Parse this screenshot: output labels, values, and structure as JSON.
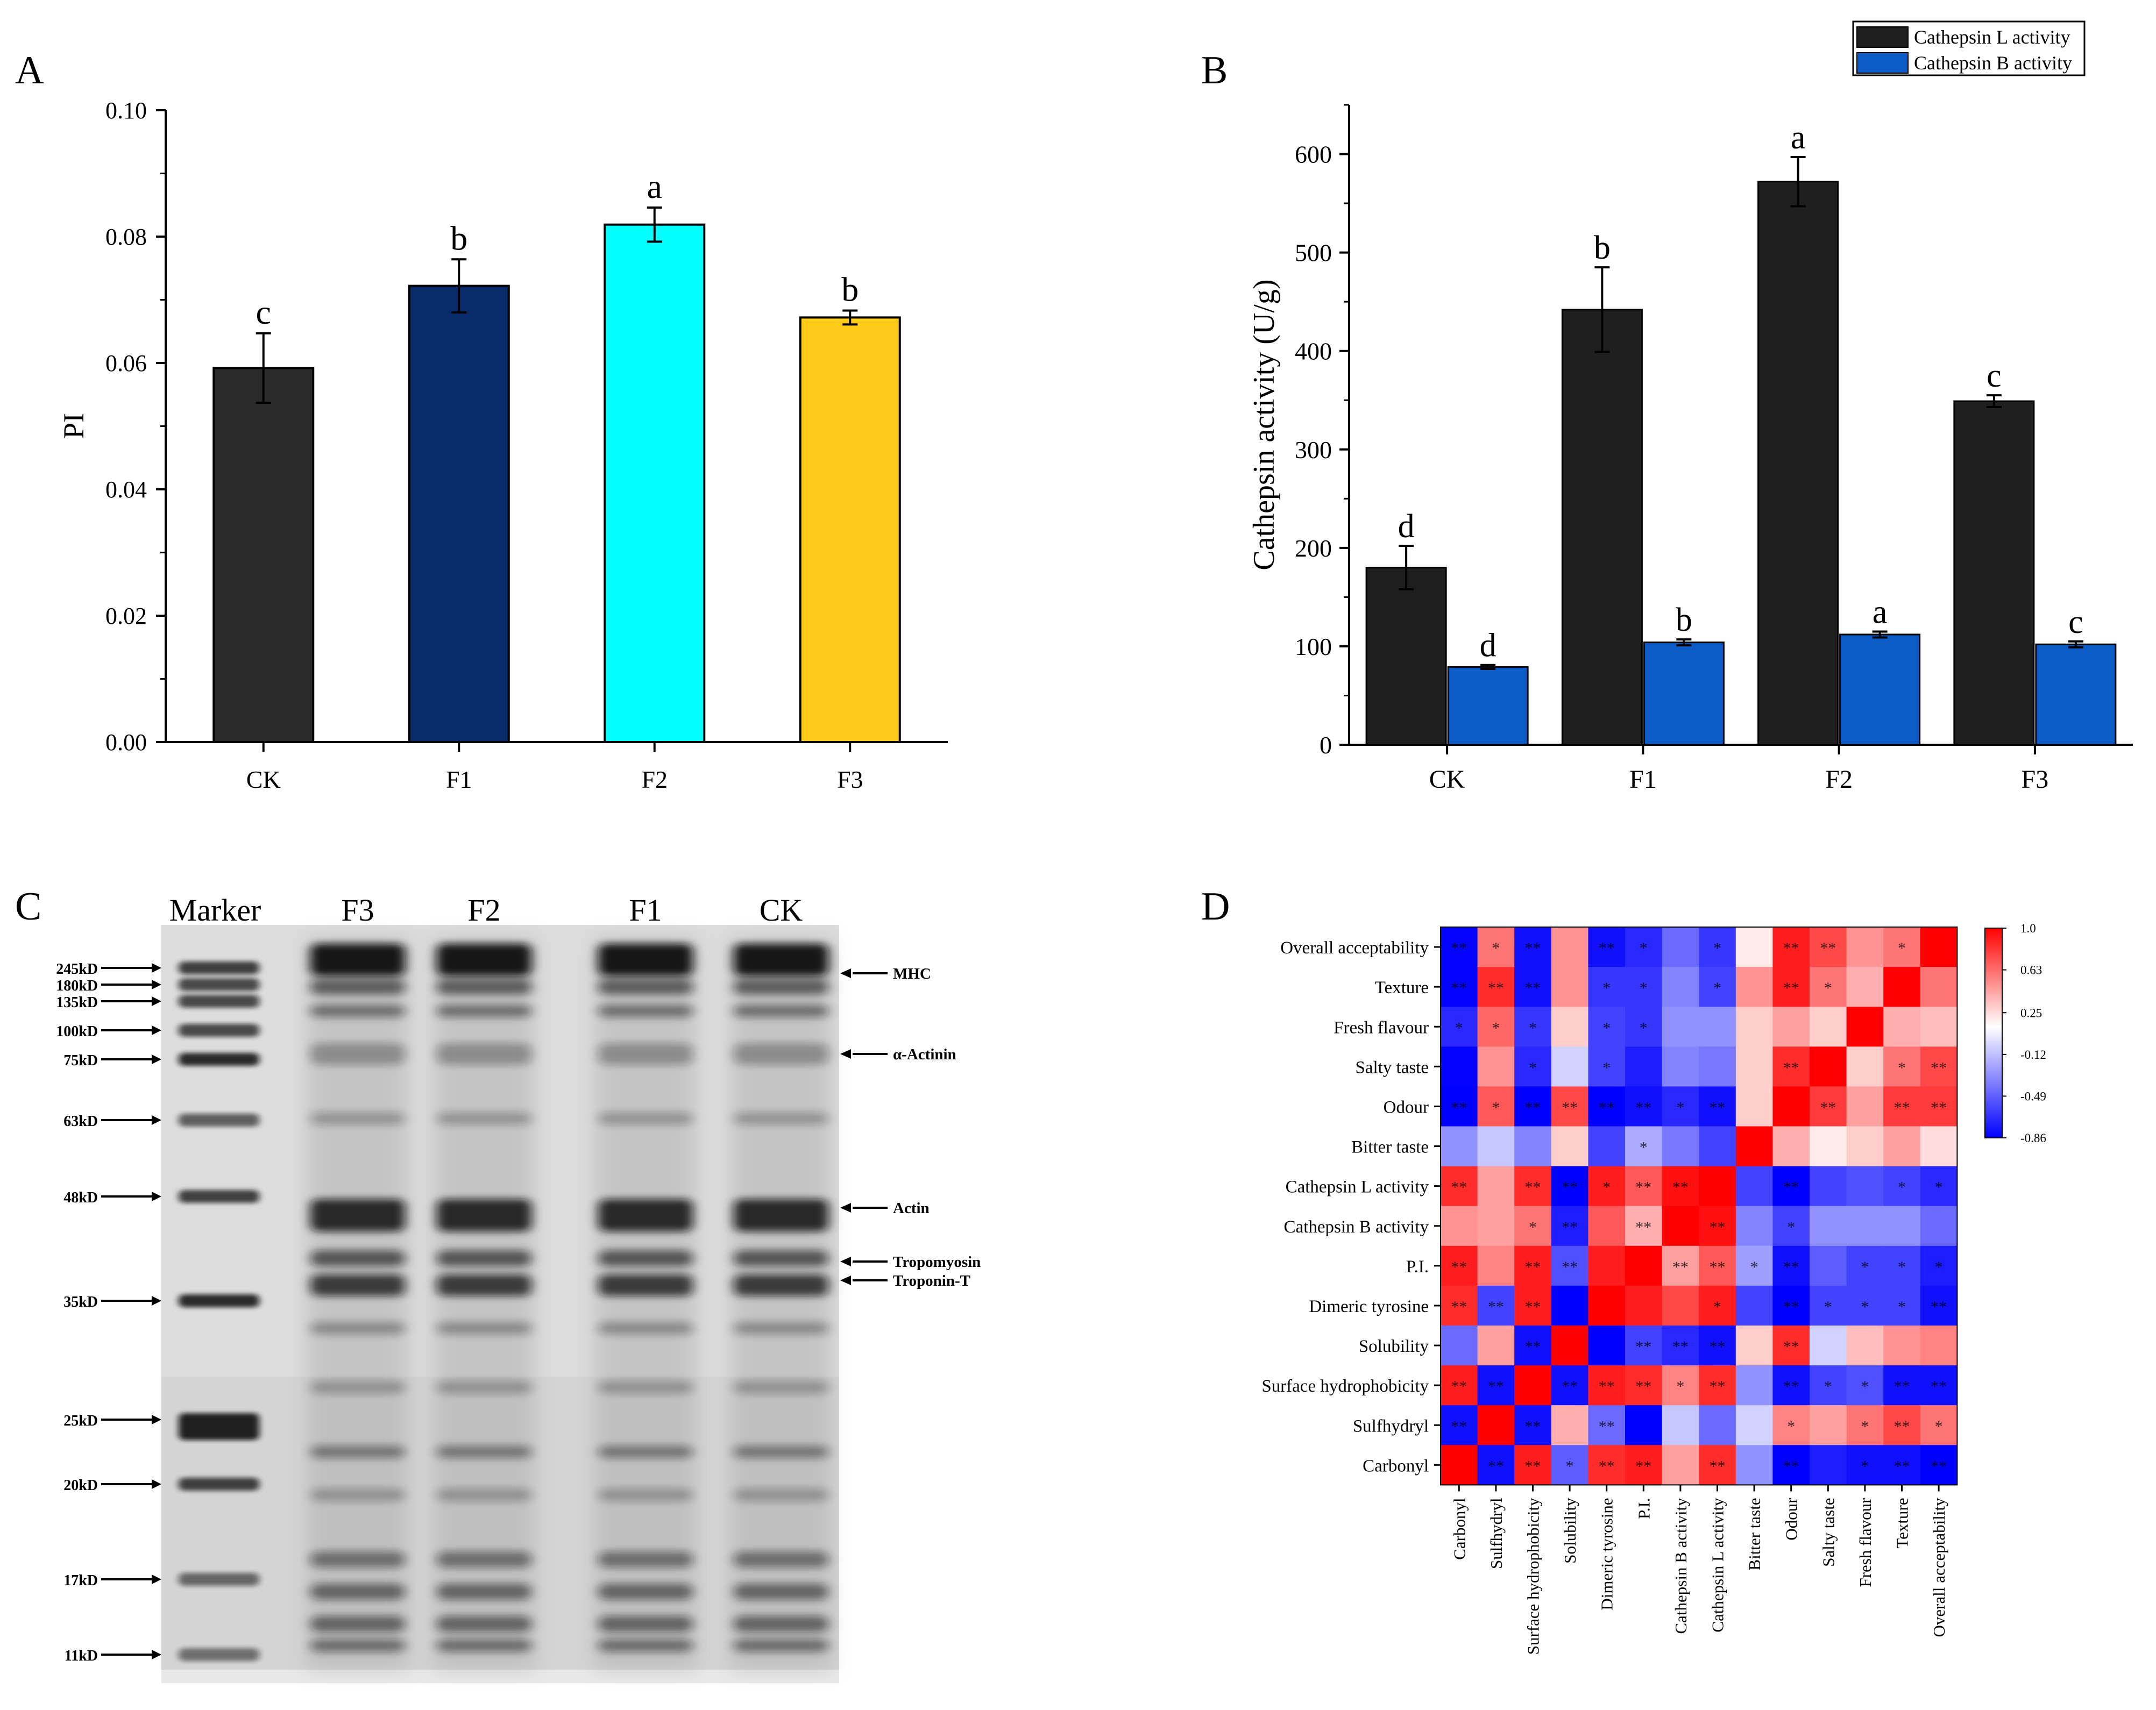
{
  "panels": {
    "A": "A",
    "B": "B",
    "C": "C",
    "D": "D"
  },
  "chart_data": [
    {
      "type": "bar",
      "id": "panel-A",
      "ylabel": "PI",
      "xlabel": "",
      "categories": [
        "CK",
        "F1",
        "F2",
        "F3"
      ],
      "values": [
        0.0592,
        0.0722,
        0.0819,
        0.0672
      ],
      "errors": [
        0.0055,
        0.0042,
        0.0027,
        0.0011
      ],
      "letters": [
        "c",
        "b",
        "a",
        "b"
      ],
      "colors": [
        "#2a2a2a",
        "#072b6a",
        "#00ffff",
        "#ffcc1a"
      ],
      "ylim": [
        0,
        0.1
      ],
      "yticks": [
        "0.00",
        "0.02",
        "0.04",
        "0.06",
        "0.08",
        "0.10"
      ],
      "ytick_values": [
        0,
        0.02,
        0.04,
        0.06,
        0.08,
        0.1
      ]
    },
    {
      "type": "bar",
      "id": "panel-B",
      "ylabel": "Cathepsin  activity (U/g)",
      "xlabel": "",
      "categories": [
        "CK",
        "F1",
        "F2",
        "F3"
      ],
      "series": [
        {
          "name": "Cathepsin L activity",
          "color": "#1f1f1f",
          "values": [
            180,
            442,
            572,
            349
          ],
          "errors": [
            22,
            43,
            25,
            6
          ],
          "letters": [
            "d",
            "b",
            "a",
            "c"
          ]
        },
        {
          "name": "Cathepsin B activity",
          "color": "#0b5cc7",
          "values": [
            79,
            104,
            112,
            102
          ],
          "errors": [
            2,
            3,
            3,
            3
          ],
          "letters": [
            "d",
            "b",
            "a",
            "c"
          ]
        }
      ],
      "ylim": [
        0,
        650
      ],
      "yticks": [
        "0",
        "100",
        "200",
        "300",
        "400",
        "500",
        "600"
      ],
      "ytick_values": [
        0,
        100,
        200,
        300,
        400,
        500,
        600
      ],
      "legend_position": "top-right"
    },
    {
      "type": "heatmap",
      "id": "panel-D",
      "row_labels": [
        "Overall acceptability",
        "Texture",
        "Fresh flavour",
        "Salty taste",
        "Odour",
        "Bitter taste",
        "Cathepsin L activity",
        "Cathepsin B activity",
        "P.I.",
        "Dimeric tyrosine",
        "Solubility",
        "Surface hydrophobicity",
        "Sulfhydryl",
        "Carbonyl"
      ],
      "col_labels": [
        "Carbonyl",
        "Sulfhydryl",
        "Surface hydrophobicity",
        "Solubility",
        "Dimeric tyrosine",
        "P.I.",
        "Cathepsin B activity",
        "Cathepsin L activity",
        "Bitter taste",
        "Odour",
        "Salty taste",
        "Fresh flavour",
        "Texture",
        "Overall acceptability"
      ],
      "values": [
        [
          -0.85,
          0.6,
          -0.8,
          0.5,
          -0.8,
          -0.7,
          -0.45,
          -0.65,
          0.2,
          0.9,
          0.75,
          0.5,
          0.6,
          1.0
        ],
        [
          -0.85,
          0.85,
          -0.8,
          0.5,
          -0.65,
          -0.65,
          -0.35,
          -0.6,
          0.5,
          0.9,
          0.6,
          0.4,
          1.0,
          0.6
        ],
        [
          -0.7,
          0.65,
          -0.65,
          0.3,
          -0.6,
          -0.65,
          -0.3,
          -0.3,
          0.3,
          0.45,
          0.3,
          1.0,
          0.4,
          0.35
        ],
        [
          -0.85,
          0.5,
          -0.7,
          -0.05,
          -0.6,
          -0.75,
          -0.35,
          -0.4,
          0.3,
          0.85,
          1.0,
          0.3,
          0.6,
          0.75
        ],
        [
          -0.86,
          0.7,
          -0.86,
          0.75,
          -0.86,
          -0.8,
          -0.7,
          -0.8,
          0.3,
          1.0,
          0.8,
          0.45,
          0.8,
          0.8
        ],
        [
          -0.3,
          -0.1,
          -0.35,
          0.3,
          -0.6,
          -0.2,
          -0.4,
          -0.6,
          1.0,
          0.4,
          0.2,
          0.3,
          0.45,
          0.25
        ],
        [
          0.85,
          0.45,
          0.85,
          -0.86,
          0.9,
          0.7,
          0.95,
          1.0,
          -0.6,
          -0.86,
          -0.6,
          -0.55,
          -0.6,
          -0.7
        ],
        [
          0.5,
          0.45,
          0.6,
          -0.75,
          0.7,
          0.4,
          1.0,
          0.95,
          -0.35,
          -0.6,
          -0.3,
          -0.3,
          -0.3,
          -0.45
        ],
        [
          0.9,
          0.55,
          0.9,
          -0.55,
          0.9,
          1.0,
          0.45,
          0.7,
          -0.25,
          -0.8,
          -0.5,
          -0.6,
          -0.6,
          -0.75
        ],
        [
          0.85,
          -0.6,
          0.9,
          -0.86,
          1.0,
          0.9,
          0.75,
          0.9,
          -0.6,
          -0.86,
          -0.6,
          -0.6,
          -0.6,
          -0.8
        ],
        [
          -0.45,
          0.45,
          -0.8,
          1.0,
          -0.86,
          -0.6,
          -0.7,
          -0.8,
          0.3,
          0.85,
          -0.05,
          0.35,
          0.5,
          0.55
        ],
        [
          0.9,
          -0.8,
          1.0,
          -0.8,
          0.9,
          0.85,
          0.55,
          0.85,
          -0.3,
          -0.8,
          -0.6,
          -0.55,
          -0.8,
          -0.8
        ],
        [
          -0.8,
          1.0,
          -0.8,
          0.4,
          -0.45,
          -0.86,
          -0.1,
          -0.45,
          -0.05,
          0.55,
          0.45,
          0.6,
          0.75,
          0.6
        ],
        [
          1.0,
          -0.8,
          0.9,
          -0.5,
          0.85,
          0.9,
          0.45,
          0.85,
          -0.3,
          -0.86,
          -0.75,
          -0.8,
          -0.8,
          -0.86
        ]
      ],
      "stars": [
        [
          "**",
          "*",
          "**",
          "",
          "**",
          "*",
          "",
          "*",
          "",
          "**",
          "**",
          "",
          "*",
          ""
        ],
        [
          "**",
          "**",
          "**",
          "",
          "*",
          "*",
          "",
          "*",
          "",
          "**",
          "*",
          "",
          "",
          ""
        ],
        [
          "*",
          "*",
          "*",
          "",
          "*",
          "*",
          "",
          "",
          "",
          "",
          "",
          "",
          "",
          ""
        ],
        [
          "",
          "",
          "*",
          "",
          "*",
          "",
          "",
          "",
          "",
          "**",
          "",
          "",
          "*",
          "**"
        ],
        [
          "**",
          "*",
          "**",
          "**",
          "**",
          "**",
          "*",
          "**",
          "",
          "",
          "**",
          "",
          "**",
          "**"
        ],
        [
          "",
          "",
          "",
          "",
          "",
          "*",
          "",
          "",
          "",
          "",
          "",
          "",
          "",
          ""
        ],
        [
          "**",
          "",
          "**",
          "**",
          "*",
          "**",
          "**",
          "",
          "",
          "**",
          "",
          "",
          "*",
          "*"
        ],
        [
          "",
          "",
          "*",
          "**",
          "",
          "**",
          "",
          "**",
          "",
          "*",
          "",
          "",
          "",
          ""
        ],
        [
          "**",
          "",
          "**",
          "**",
          "",
          "",
          "**",
          "**",
          "*",
          "**",
          "",
          "*",
          "*",
          "*"
        ],
        [
          "**",
          "**",
          "**",
          "",
          "",
          "",
          "",
          "*",
          "",
          "**",
          "*",
          "*",
          "*",
          "**"
        ],
        [
          "",
          "",
          "**",
          "",
          "",
          "**",
          "**",
          "**",
          "",
          "**",
          "",
          "",
          "",
          ""
        ],
        [
          "**",
          "**",
          "",
          "**",
          "**",
          "**",
          "*",
          "**",
          "",
          "**",
          "*",
          "*",
          "**",
          "**"
        ],
        [
          "**",
          "",
          "**",
          "",
          "**",
          "",
          "",
          "",
          "",
          "*",
          "",
          "*",
          "**",
          "*"
        ],
        [
          "",
          "**",
          "**",
          "*",
          "**",
          "**",
          "",
          "**",
          "",
          "**",
          "",
          "*",
          "**",
          "**"
        ]
      ],
      "colorbar_ticks": [
        "1.0",
        "0.63",
        "0.25",
        "-0.12",
        "-0.49",
        "-0.86"
      ],
      "colorbar_values": [
        1.0,
        0.63,
        0.25,
        -0.12,
        -0.49,
        -0.86
      ],
      "vmin": -0.86,
      "vmax": 1.0
    }
  ],
  "gel": {
    "lane_headers": [
      "Marker",
      "F3",
      "F2",
      "F1",
      "CK"
    ],
    "marker_labels": [
      "245kD",
      "180kD",
      "135kD",
      "100kD",
      "75kD",
      "63kD",
      "48kD",
      "35kD",
      "25kD",
      "20kD",
      "17kD",
      "11kD"
    ],
    "band_labels": [
      "MHC",
      "α-Actinin",
      "Actin",
      "Tropomyosin",
      "Troponin-T"
    ]
  }
}
